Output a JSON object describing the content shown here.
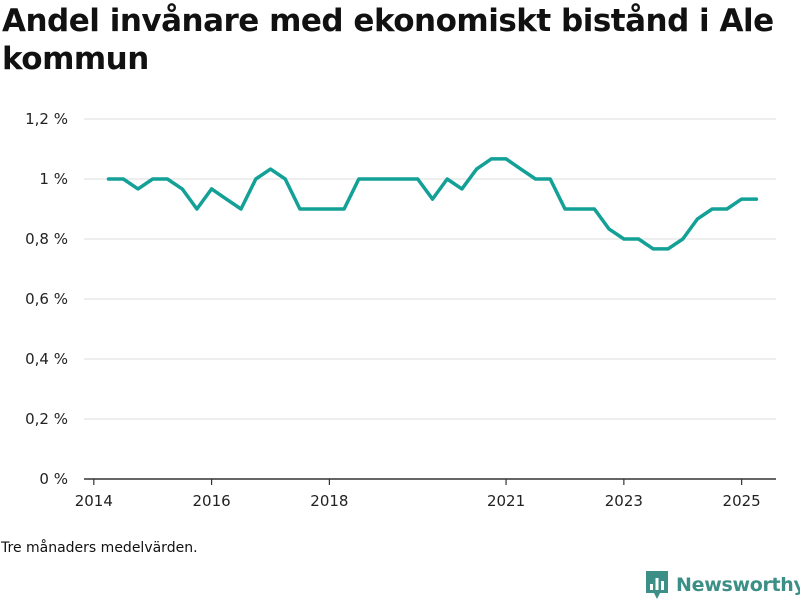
{
  "header": {
    "title": "Andel invånare med ekonomiskt bistånd i Ale kommun"
  },
  "footer": {
    "note": "Tre månaders medelvärden.",
    "brand": "Newsworthy"
  },
  "colors": {
    "line": "#13a097",
    "grid": "#dddddd",
    "axis": "#333333",
    "brand": "#3b8f86"
  },
  "chart_data": {
    "type": "line",
    "title": "Andel invånare med ekonomiskt bistånd i Ale kommun",
    "xlabel": "",
    "ylabel": "",
    "ylim": [
      0,
      1.2
    ],
    "xlim": [
      "2013-11",
      "2025-08"
    ],
    "y_ticks": [
      {
        "value": 0,
        "label": "0 %"
      },
      {
        "value": 0.2,
        "label": "0,2 %"
      },
      {
        "value": 0.4,
        "label": "0,4 %"
      },
      {
        "value": 0.6,
        "label": "0,6 %"
      },
      {
        "value": 0.8,
        "label": "0,8 %"
      },
      {
        "value": 1.0,
        "label": "1 %"
      },
      {
        "value": 1.2,
        "label": "1,2 %"
      }
    ],
    "x_ticks": [
      {
        "value": "2014-01",
        "label": "2014"
      },
      {
        "value": "2016-01",
        "label": "2016"
      },
      {
        "value": "2018-01",
        "label": "2018"
      },
      {
        "value": "2021-01",
        "label": "2021"
      },
      {
        "value": "2023-01",
        "label": "2023"
      },
      {
        "value": "2025-01",
        "label": "2025"
      }
    ],
    "grid": true,
    "series": [
      {
        "x": [
          "2014-04",
          "2014-07",
          "2014-10",
          "2015-01",
          "2015-04",
          "2015-07",
          "2015-10",
          "2016-01",
          "2016-04",
          "2016-07",
          "2016-10",
          "2017-01",
          "2017-04",
          "2017-07",
          "2017-10",
          "2018-01",
          "2018-04",
          "2018-07",
          "2018-10",
          "2019-01",
          "2019-04",
          "2019-07",
          "2019-10",
          "2020-01",
          "2020-04",
          "2020-07",
          "2020-10",
          "2021-01",
          "2021-04",
          "2021-07",
          "2021-10",
          "2022-01",
          "2022-04",
          "2022-07",
          "2022-10",
          "2023-01",
          "2023-04",
          "2023-07",
          "2023-10",
          "2024-01",
          "2024-04",
          "2024-07",
          "2024-10",
          "2025-01",
          "2025-04"
        ],
        "values": [
          1.0,
          1.0,
          0.967,
          1.0,
          1.0,
          0.967,
          0.9,
          0.967,
          0.933,
          0.9,
          1.0,
          1.033,
          1.0,
          0.9,
          0.9,
          0.9,
          0.9,
          1.0,
          1.0,
          1.0,
          1.0,
          1.0,
          0.933,
          1.0,
          0.967,
          1.033,
          1.067,
          1.067,
          1.033,
          1.0,
          1.0,
          0.9,
          0.9,
          0.9,
          0.833,
          0.8,
          0.8,
          0.767,
          0.767,
          0.8,
          0.867,
          0.9,
          0.9,
          0.933,
          0.933
        ]
      }
    ]
  }
}
